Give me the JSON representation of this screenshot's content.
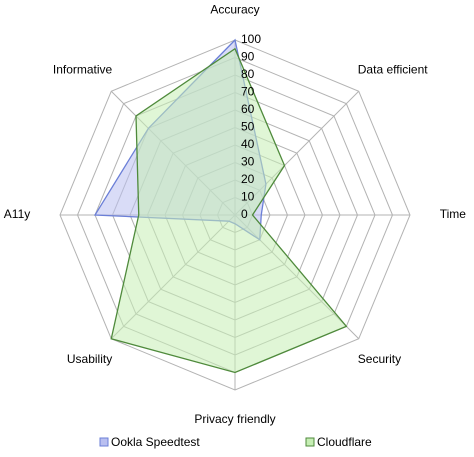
{
  "chart_data": {
    "type": "radar",
    "categories": [
      "Accuracy",
      "Data efficient",
      "Time",
      "Security",
      "Privacy friendly",
      "Usability",
      "A11y",
      "Informative"
    ],
    "series": [
      {
        "name": "Ookla Speedtest",
        "color": "#6b7fd7",
        "fill": "#b9bff0",
        "values": [
          100,
          25,
          15,
          20,
          5,
          5,
          80,
          70
        ]
      },
      {
        "name": "Cloudflare",
        "color": "#4f8a3c",
        "fill": "#c6eeb4",
        "values": [
          95,
          40,
          10,
          90,
          90,
          100,
          55,
          80
        ]
      }
    ],
    "rlim": [
      0,
      100
    ],
    "rticks": [
      0,
      10,
      20,
      30,
      40,
      50,
      60,
      70,
      80,
      90,
      100
    ],
    "grid": true,
    "legend": "bottom"
  }
}
